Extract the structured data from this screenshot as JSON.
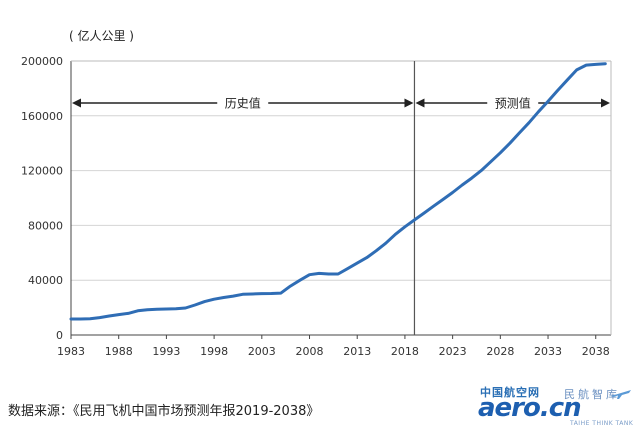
{
  "chart_data": {
    "type": "line",
    "unit_label": "( 亿人公里 )",
    "x": [
      1983,
      1984,
      1985,
      1986,
      1987,
      1988,
      1989,
      1990,
      1991,
      1992,
      1993,
      1994,
      1995,
      1996,
      1997,
      1998,
      1999,
      2000,
      2001,
      2002,
      2003,
      2004,
      2005,
      2006,
      2007,
      2008,
      2009,
      2010,
      2011,
      2012,
      2013,
      2014,
      2015,
      2016,
      2017,
      2018,
      2019,
      2020,
      2021,
      2022,
      2023,
      2024,
      2025,
      2026,
      2027,
      2028,
      2029,
      2030,
      2031,
      2032,
      2033,
      2034,
      2035,
      2036,
      2037,
      2038,
      2039
    ],
    "series": [
      {
        "values": [
          11700,
          11700,
          11800,
          12700,
          13900,
          14900,
          15800,
          17700,
          18500,
          18800,
          19000,
          19200,
          19700,
          21900,
          24400,
          26100,
          27400,
          28400,
          29700,
          29900,
          30200,
          30300,
          30600,
          35700,
          40000,
          44000,
          45000,
          44500,
          44500,
          48500,
          52500,
          56500,
          61500,
          67000,
          73500,
          79000,
          84000,
          89000,
          94000,
          99000,
          104000,
          109500,
          114500,
          120000,
          126500,
          133000,
          140000,
          147500,
          155000,
          163000,
          170500,
          178500,
          186000,
          193500,
          197000,
          197500,
          198000
        ],
        "color": "#2f6db5"
      }
    ],
    "x_ticks": [
      "1983",
      "1988",
      "1993",
      "1998",
      "2003",
      "2008",
      "2013",
      "2018",
      "2023",
      "2028",
      "2033",
      "2038"
    ],
    "x_tick_values": [
      1983,
      1988,
      1993,
      1998,
      2003,
      2008,
      2013,
      2018,
      2023,
      2028,
      2033,
      2038
    ],
    "y_ticks": [
      "0",
      "40000",
      "80000",
      "120000",
      "160000",
      "200000"
    ],
    "y_tick_values": [
      0,
      40000,
      80000,
      120000,
      160000,
      200000
    ],
    "xlim": [
      1983,
      2039.6
    ],
    "ylim": [
      0,
      200000
    ],
    "divider_x": 2019,
    "regions": [
      {
        "label": "历史值",
        "from": 1983,
        "to": 2019
      },
      {
        "label": "预测值",
        "from": 2019,
        "to": 2039.6
      }
    ],
    "grid": true
  },
  "source_text": "数据来源：《民用飞机中国市场预测年报2019-2038》",
  "logo": {
    "main": "aero.cn",
    "cn": "中国航空网",
    "sub": "民航智库",
    "tag": "TAIHE THINK TANK"
  },
  "colors": {
    "line": "#2f6db5",
    "grid": "#d4d4d4",
    "axis": "#444444",
    "logo": "#1d5fb0"
  }
}
